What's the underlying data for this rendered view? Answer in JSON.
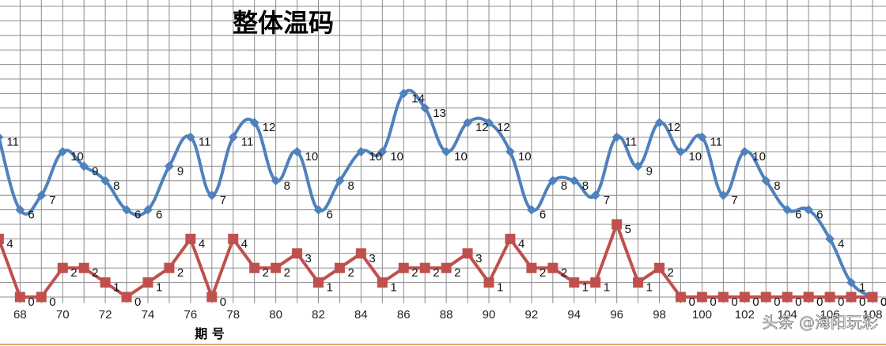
{
  "chart_data": {
    "type": "line",
    "title": "整体温码",
    "xlabel": "期 号",
    "ylabel": "",
    "xlim": [
      67,
      108
    ],
    "ylim": [
      0,
      20
    ],
    "x_ticks": [
      68,
      70,
      72,
      74,
      76,
      78,
      80,
      82,
      84,
      86,
      88,
      90,
      92,
      94,
      96,
      98,
      100,
      102,
      104,
      106,
      108
    ],
    "x_tick_labels": [
      "68",
      "70",
      "72",
      "74",
      "76",
      "78",
      "80",
      "82",
      "84",
      "86",
      "88",
      "90",
      "92",
      "94",
      "96",
      "98",
      "100",
      "102",
      "104",
      "106",
      "108"
    ],
    "grid": true,
    "x": [
      67,
      68,
      69,
      70,
      71,
      72,
      73,
      74,
      75,
      76,
      77,
      78,
      79,
      80,
      81,
      82,
      83,
      84,
      85,
      86,
      87,
      88,
      89,
      90,
      91,
      92,
      93,
      94,
      95,
      96,
      97,
      98,
      99,
      100,
      101,
      102,
      103,
      104,
      105,
      106,
      107,
      108
    ],
    "series": [
      {
        "color": "#4f81bd",
        "marker": "diamond",
        "values": [
          11,
          6,
          7,
          10,
          9,
          8,
          6,
          6,
          9,
          11,
          7,
          11,
          12,
          8,
          10,
          6,
          8,
          10,
          10,
          14,
          13,
          10,
          12,
          12,
          10,
          6,
          8,
          8,
          7,
          11,
          9,
          12,
          10,
          11,
          7,
          10,
          8,
          6,
          6,
          4,
          1,
          0
        ],
        "data_labels": [
          "11",
          "6",
          "7",
          "10",
          "9",
          "8",
          "6",
          "6",
          "9",
          "11",
          "7",
          "11",
          "12",
          "8",
          "10",
          "6",
          "8",
          "10",
          "10",
          "14",
          "13",
          "10",
          "12",
          "12",
          "10",
          "6",
          "8",
          "8",
          "7",
          "11",
          "9",
          "12",
          "10",
          "11",
          "7",
          "10",
          "8",
          "6",
          "6",
          "4",
          "1",
          "0"
        ]
      },
      {
        "color": "#c0504d",
        "marker": "square",
        "values": [
          4,
          0,
          0,
          2,
          2,
          1,
          0,
          1,
          2,
          4,
          0,
          4,
          2,
          2,
          3,
          1,
          2,
          3,
          1,
          2,
          2,
          2,
          3,
          1,
          4,
          2,
          2,
          1,
          1,
          5,
          1,
          2,
          0,
          0,
          0,
          0,
          0,
          0,
          0,
          0,
          0,
          0
        ],
        "data_labels": [
          "4",
          "0",
          "0",
          "2",
          "2",
          "1",
          "0",
          "1",
          "2",
          "4",
          "0",
          "4",
          "2",
          "2",
          "3",
          "1",
          "2",
          "3",
          "1",
          "2",
          "2",
          "2",
          "3",
          "1",
          "4",
          "2",
          "2",
          "1",
          "1",
          "5",
          "1",
          "2",
          "0",
          "0",
          "0",
          "0",
          "0",
          "0",
          "0",
          "0",
          "0",
          "0"
        ]
      }
    ]
  },
  "watermark": "头条 @海阳玩彩"
}
